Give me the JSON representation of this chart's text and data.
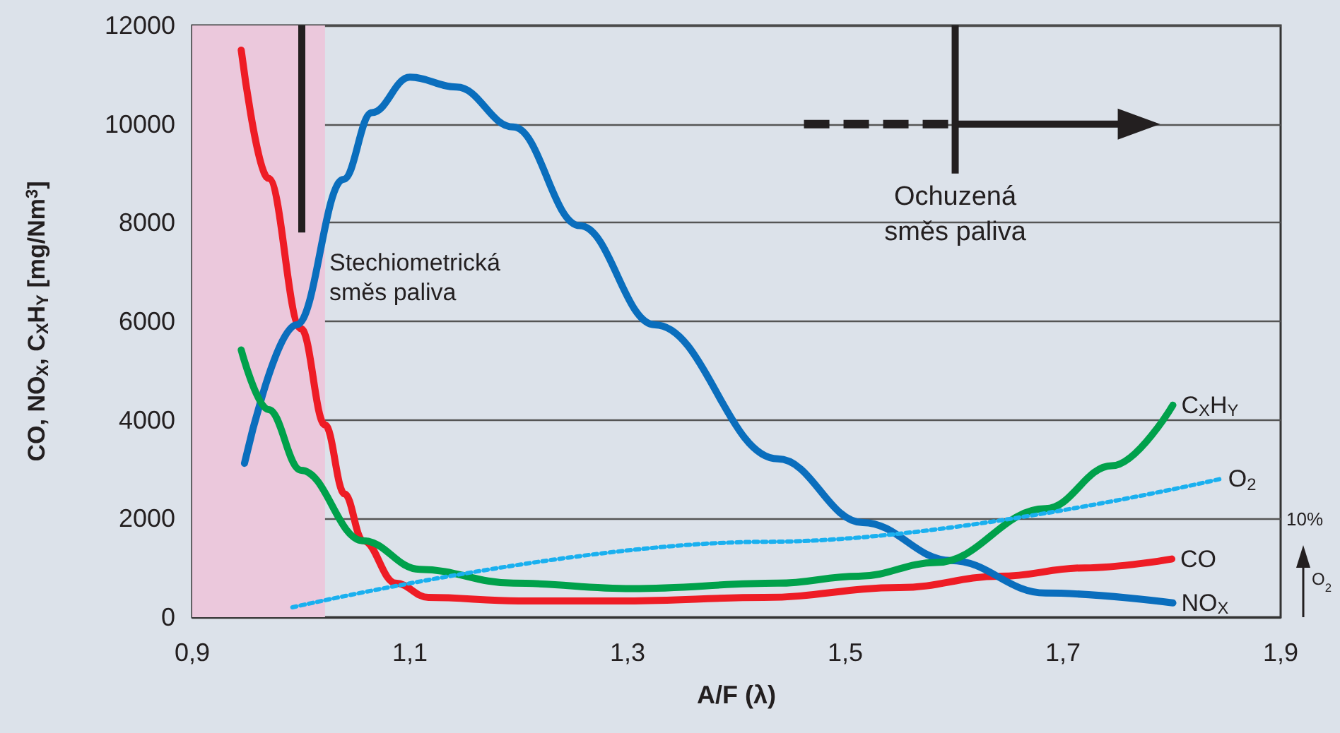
{
  "chart_data": {
    "type": "line",
    "xlabel": "A/F (λ)",
    "ylabel": "CO, NO$_{X}$, C$_{X}$H$_{Y}$ [mg/Nm$^{3}$]",
    "xlim": [
      0.9,
      1.9
    ],
    "xticks": [
      {
        "value": 0.9,
        "label": "0,9"
      },
      {
        "value": 1.1,
        "label": "1,1"
      },
      {
        "value": 1.3,
        "label": "1,3"
      },
      {
        "value": 1.5,
        "label": "1,5"
      },
      {
        "value": 1.7,
        "label": "1,7"
      },
      {
        "value": 1.9,
        "label": "1,9"
      }
    ],
    "ylim": [
      0,
      12000
    ],
    "yticks": [
      0,
      2000,
      4000,
      6000,
      8000,
      10000,
      12000
    ],
    "grid": "y",
    "legend": false,
    "marker": "none",
    "series": [
      {
        "name": "CO",
        "color": "#ee1c25",
        "line_style": "solid",
        "x": [
          0.945,
          0.97,
          1.0,
          1.022,
          1.04,
          1.057,
          1.087,
          1.117,
          1.2,
          1.3,
          1.425,
          1.55,
          1.642,
          1.72,
          1.8
        ],
        "values": [
          11500,
          8900,
          5850,
          3900,
          2500,
          1550,
          690,
          400,
          330,
          330,
          400,
          600,
          830,
          1000,
          1180
        ]
      },
      {
        "name": "NO$_{X}$",
        "color": "#0a6ebd",
        "line_style": "solid",
        "x": [
          0.948,
          0.996,
          1.039,
          1.065,
          1.1,
          1.143,
          1.195,
          1.256,
          1.325,
          1.438,
          1.516,
          1.597,
          1.684,
          1.801
        ],
        "values": [
          3120,
          5930,
          8880,
          10230,
          10950,
          10750,
          9940,
          7940,
          5930,
          3210,
          1920,
          1150,
          490,
          290
        ]
      },
      {
        "name": "C$_{X}$H$_{Y}$",
        "color": "#00a14b",
        "line_style": "solid",
        "x": [
          0.945,
          0.97,
          1.0,
          1.057,
          1.109,
          1.195,
          1.304,
          1.438,
          1.512,
          1.584,
          1.684,
          1.745,
          1.801
        ],
        "values": [
          5420,
          4210,
          2980,
          1550,
          970,
          690,
          580,
          690,
          830,
          1110,
          2200,
          3070,
          4300
        ]
      },
      {
        "name": "O$_{2}$",
        "color": "#1ab0ef",
        "line_style": "dotted",
        "x": [
          0.992,
          1.429,
          1.844
        ],
        "values": [
          200,
          1530,
          2800
        ]
      }
    ],
    "bands": [
      {
        "axis": "x",
        "from": 0.9,
        "to": 1.022,
        "color": "#ebc8dc"
      }
    ],
    "ref_lines": [
      {
        "axis": "x",
        "value": 1.0,
        "label": "Stechiometrická\nsměs paliva",
        "color": "#231f20"
      }
    ],
    "annotations": [
      "Ochuzená\nsměs paliva",
      "10%",
      "O$_{2}$"
    ]
  }
}
